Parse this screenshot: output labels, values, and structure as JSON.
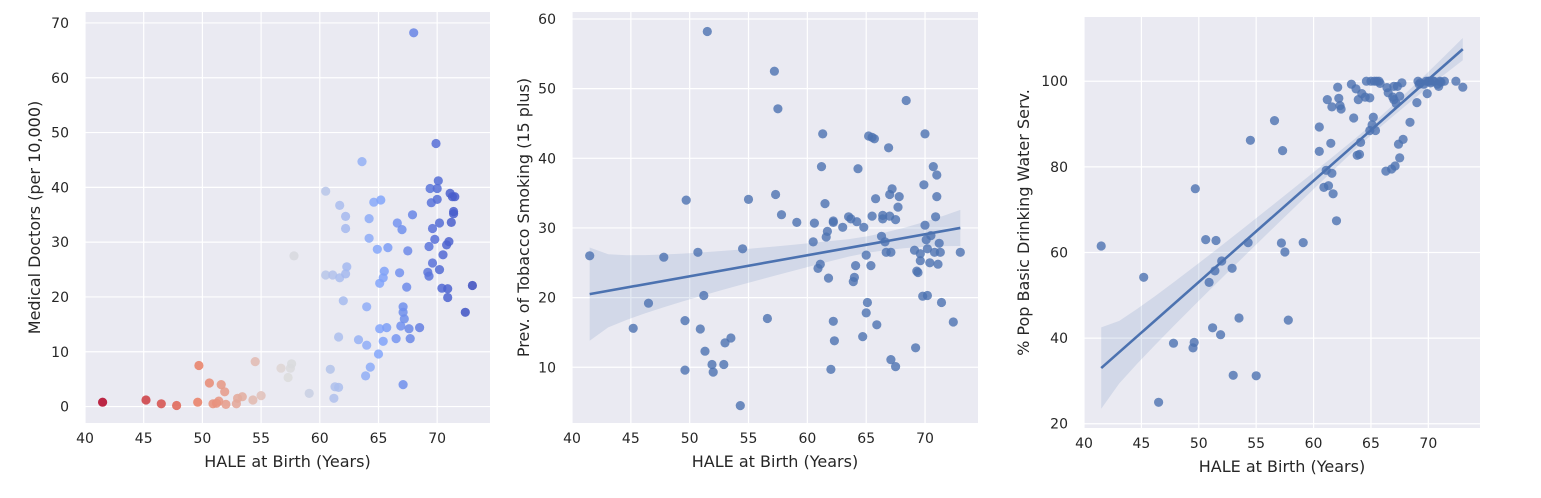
{
  "chart_data": [
    {
      "type": "scatter",
      "xlabel": "HALE at Birth (Years)",
      "ylabel": "Medical Doctors (per 10,000)",
      "xlim": [
        40,
        74.5
      ],
      "ylim": [
        -3,
        72
      ],
      "xticks": [
        40,
        45,
        50,
        55,
        60,
        65,
        70
      ],
      "yticks": [
        0,
        10,
        20,
        30,
        40,
        50,
        60,
        70
      ],
      "grid": true,
      "color_map": "coolwarm (reversed) by HALE at Birth",
      "points": [
        [
          41.5,
          0.8
        ],
        [
          45.2,
          1.2
        ],
        [
          46.5,
          0.5
        ],
        [
          47.8,
          0.2
        ],
        [
          49.6,
          0.8
        ],
        [
          49.7,
          7.5
        ],
        [
          50.6,
          4.3
        ],
        [
          50.9,
          0.5
        ],
        [
          51.2,
          0.6
        ],
        [
          51.4,
          1.0
        ],
        [
          51.6,
          4.0
        ],
        [
          51.9,
          2.7
        ],
        [
          52.0,
          0.4
        ],
        [
          52.9,
          0.5
        ],
        [
          53.0,
          1.5
        ],
        [
          53.4,
          1.8
        ],
        [
          54.3,
          1.2
        ],
        [
          54.5,
          8.2
        ],
        [
          55.0,
          2.0
        ],
        [
          56.7,
          7.0
        ],
        [
          57.3,
          5.3
        ],
        [
          57.5,
          7.0
        ],
        [
          57.6,
          7.8
        ],
        [
          57.8,
          27.5
        ],
        [
          59.1,
          2.4
        ],
        [
          60.5,
          39.3
        ],
        [
          60.5,
          24.0
        ],
        [
          60.9,
          6.8
        ],
        [
          61.1,
          24.0
        ],
        [
          61.2,
          1.5
        ],
        [
          61.3,
          3.6
        ],
        [
          61.6,
          3.5
        ],
        [
          61.6,
          12.7
        ],
        [
          61.7,
          23.5
        ],
        [
          61.7,
          36.7
        ],
        [
          62.0,
          19.3
        ],
        [
          62.2,
          34.7
        ],
        [
          62.2,
          32.5
        ],
        [
          62.2,
          24.2
        ],
        [
          62.3,
          25.5
        ],
        [
          63.3,
          12.2
        ],
        [
          63.6,
          44.7
        ],
        [
          63.9,
          5.6
        ],
        [
          64.0,
          18.2
        ],
        [
          64.0,
          11.2
        ],
        [
          64.2,
          34.3
        ],
        [
          64.2,
          30.7
        ],
        [
          64.3,
          7.2
        ],
        [
          64.6,
          37.3
        ],
        [
          64.9,
          28.7
        ],
        [
          65.0,
          9.6
        ],
        [
          65.1,
          14.2
        ],
        [
          65.1,
          22.5
        ],
        [
          65.2,
          37.7
        ],
        [
          65.4,
          11.9
        ],
        [
          65.4,
          23.5
        ],
        [
          65.5,
          24.7
        ],
        [
          65.7,
          14.4
        ],
        [
          65.8,
          29.0
        ],
        [
          66.5,
          12.4
        ],
        [
          66.6,
          33.5
        ],
        [
          66.8,
          24.4
        ],
        [
          66.9,
          14.7
        ],
        [
          67.0,
          32.3
        ],
        [
          67.1,
          17.2
        ],
        [
          67.1,
          18.2
        ],
        [
          67.1,
          4.0
        ],
        [
          67.2,
          16.0
        ],
        [
          67.4,
          21.8
        ],
        [
          67.5,
          28.4
        ],
        [
          67.6,
          14.2
        ],
        [
          67.7,
          12.4
        ],
        [
          67.9,
          35.0
        ],
        [
          68.0,
          68.2
        ],
        [
          68.5,
          14.4
        ],
        [
          69.2,
          24.5
        ],
        [
          69.3,
          29.2
        ],
        [
          69.3,
          23.8
        ],
        [
          69.4,
          39.8
        ],
        [
          69.5,
          37.2
        ],
        [
          69.6,
          26.2
        ],
        [
          69.6,
          32.5
        ],
        [
          69.8,
          30.5
        ],
        [
          69.9,
          48.0
        ],
        [
          70.0,
          37.8
        ],
        [
          70.0,
          39.8
        ],
        [
          70.1,
          41.2
        ],
        [
          70.2,
          25.0
        ],
        [
          70.2,
          33.5
        ],
        [
          70.4,
          21.6
        ],
        [
          70.5,
          27.7
        ],
        [
          70.8,
          29.5
        ],
        [
          70.9,
          19.9
        ],
        [
          70.9,
          21.5
        ],
        [
          71.0,
          30.1
        ],
        [
          71.1,
          38.9
        ],
        [
          71.2,
          33.6
        ],
        [
          71.3,
          38.3
        ],
        [
          71.4,
          35.6
        ],
        [
          71.4,
          35.2
        ],
        [
          71.5,
          38.3
        ],
        [
          72.4,
          17.2
        ],
        [
          73.0,
          22.1
        ]
      ]
    },
    {
      "type": "scatter",
      "xlabel": "HALE at Birth (Years)",
      "ylabel": "Prev. of Tobacco Smoking (15 plus)",
      "xlim": [
        40,
        74.5
      ],
      "ylim": [
        2,
        61
      ],
      "xticks": [
        40,
        45,
        50,
        55,
        60,
        65,
        70
      ],
      "yticks": [
        10,
        20,
        30,
        40,
        50,
        60
      ],
      "grid": true,
      "regression": {
        "x": [
          41.5,
          73.0
        ],
        "y": [
          20.5,
          30.0
        ],
        "ci_low": [
          14.2,
          27.5
        ],
        "ci_high": [
          27.6,
          32.7
        ]
      },
      "points": [
        [
          41.5,
          26.0
        ],
        [
          45.2,
          15.6
        ],
        [
          46.5,
          19.2
        ],
        [
          47.8,
          25.8
        ],
        [
          49.6,
          16.7
        ],
        [
          49.6,
          9.6
        ],
        [
          49.7,
          34.0
        ],
        [
          50.7,
          26.5
        ],
        [
          50.9,
          15.5
        ],
        [
          51.2,
          20.3
        ],
        [
          51.3,
          12.3
        ],
        [
          51.5,
          58.2
        ],
        [
          51.9,
          10.4
        ],
        [
          52.0,
          9.3
        ],
        [
          52.9,
          10.4
        ],
        [
          53.0,
          13.5
        ],
        [
          53.5,
          14.2
        ],
        [
          54.3,
          4.5
        ],
        [
          54.5,
          27.0
        ],
        [
          55.0,
          34.1
        ],
        [
          56.6,
          17.0
        ],
        [
          57.2,
          52.5
        ],
        [
          57.3,
          34.8
        ],
        [
          57.5,
          47.1
        ],
        [
          57.8,
          31.9
        ],
        [
          59.1,
          30.8
        ],
        [
          60.5,
          28.0
        ],
        [
          60.6,
          30.7
        ],
        [
          60.9,
          24.2
        ],
        [
          61.1,
          24.8
        ],
        [
          61.2,
          38.8
        ],
        [
          61.3,
          43.5
        ],
        [
          61.5,
          33.5
        ],
        [
          61.6,
          28.7
        ],
        [
          61.7,
          29.5
        ],
        [
          61.8,
          22.8
        ],
        [
          62.0,
          9.7
        ],
        [
          62.2,
          31.0
        ],
        [
          62.2,
          30.8
        ],
        [
          62.2,
          16.6
        ],
        [
          62.3,
          13.8
        ],
        [
          63.0,
          30.1
        ],
        [
          63.5,
          31.6
        ],
        [
          63.7,
          31.3
        ],
        [
          63.9,
          22.3
        ],
        [
          64.0,
          22.9
        ],
        [
          64.1,
          24.6
        ],
        [
          64.2,
          30.9
        ],
        [
          64.3,
          38.5
        ],
        [
          64.7,
          14.4
        ],
        [
          64.8,
          30.1
        ],
        [
          65.0,
          26.1
        ],
        [
          65.0,
          17.8
        ],
        [
          65.1,
          19.3
        ],
        [
          65.2,
          43.2
        ],
        [
          65.4,
          24.6
        ],
        [
          65.5,
          43.0
        ],
        [
          65.5,
          31.7
        ],
        [
          65.7,
          42.8
        ],
        [
          65.8,
          34.2
        ],
        [
          65.9,
          16.1
        ],
        [
          66.3,
          28.8
        ],
        [
          66.4,
          31.3
        ],
        [
          66.4,
          31.8
        ],
        [
          66.6,
          28.0
        ],
        [
          66.7,
          26.5
        ],
        [
          66.9,
          41.5
        ],
        [
          67.0,
          34.8
        ],
        [
          67.0,
          31.7
        ],
        [
          67.1,
          11.1
        ],
        [
          67.1,
          26.5
        ],
        [
          67.2,
          35.6
        ],
        [
          67.5,
          10.1
        ],
        [
          67.5,
          31.2
        ],
        [
          67.7,
          33.0
        ],
        [
          67.8,
          34.5
        ],
        [
          68.4,
          48.3
        ],
        [
          69.1,
          26.8
        ],
        [
          69.2,
          12.8
        ],
        [
          69.3,
          23.8
        ],
        [
          69.4,
          23.6
        ],
        [
          69.6,
          26.3
        ],
        [
          69.6,
          25.3
        ],
        [
          69.8,
          20.2
        ],
        [
          69.9,
          36.2
        ],
        [
          70.0,
          43.5
        ],
        [
          70.0,
          30.4
        ],
        [
          70.1,
          28.3
        ],
        [
          70.2,
          20.3
        ],
        [
          70.2,
          27.0
        ],
        [
          70.4,
          25.0
        ],
        [
          70.5,
          28.9
        ],
        [
          70.7,
          38.8
        ],
        [
          70.8,
          26.5
        ],
        [
          70.9,
          31.6
        ],
        [
          71.0,
          37.6
        ],
        [
          71.0,
          34.5
        ],
        [
          71.1,
          24.8
        ],
        [
          71.2,
          27.8
        ],
        [
          71.3,
          26.5
        ],
        [
          71.4,
          19.3
        ],
        [
          72.4,
          16.5
        ],
        [
          73.0,
          26.5
        ]
      ]
    },
    {
      "type": "scatter",
      "xlabel": "HALE at Birth (Years)",
      "ylabel": "% Pop Basic Drinking Water Serv.",
      "xlim": [
        40,
        74.5
      ],
      "ylim": [
        19,
        115
      ],
      "xticks": [
        40,
        45,
        50,
        55,
        60,
        65,
        70
      ],
      "yticks": [
        20,
        40,
        60,
        80,
        100
      ],
      "grid": true,
      "regression": {
        "x": [
          41.5,
          73.0
        ],
        "y": [
          33.0,
          107.5
        ],
        "ci_low": [
          23.5,
          105.0
        ],
        "ci_high": [
          42.5,
          110.2
        ]
      },
      "points": [
        [
          41.5,
          61.5
        ],
        [
          45.2,
          54.2
        ],
        [
          46.5,
          25.0
        ],
        [
          47.8,
          38.8
        ],
        [
          49.5,
          37.7
        ],
        [
          49.6,
          39.0
        ],
        [
          49.7,
          74.9
        ],
        [
          50.6,
          63.0
        ],
        [
          50.9,
          53.0
        ],
        [
          51.2,
          42.4
        ],
        [
          51.4,
          55.7
        ],
        [
          51.5,
          62.8
        ],
        [
          51.9,
          40.8
        ],
        [
          52.0,
          58.0
        ],
        [
          52.9,
          56.3
        ],
        [
          53.0,
          31.3
        ],
        [
          53.5,
          44.7
        ],
        [
          54.3,
          62.3
        ],
        [
          54.5,
          86.2
        ],
        [
          55.0,
          31.2
        ],
        [
          56.6,
          90.8
        ],
        [
          57.2,
          62.2
        ],
        [
          57.3,
          83.8
        ],
        [
          57.5,
          60.1
        ],
        [
          57.8,
          44.2
        ],
        [
          59.1,
          62.3
        ],
        [
          60.5,
          89.3
        ],
        [
          60.5,
          83.6
        ],
        [
          60.9,
          75.2
        ],
        [
          61.1,
          79.2
        ],
        [
          61.2,
          95.7
        ],
        [
          61.3,
          75.6
        ],
        [
          61.5,
          85.5
        ],
        [
          61.6,
          78.5
        ],
        [
          61.6,
          94.0
        ],
        [
          61.7,
          73.7
        ],
        [
          62.0,
          67.4
        ],
        [
          62.1,
          98.6
        ],
        [
          62.2,
          96.0
        ],
        [
          62.3,
          94.3
        ],
        [
          62.4,
          93.5
        ],
        [
          63.3,
          99.3
        ],
        [
          63.5,
          91.4
        ],
        [
          63.7,
          98.2
        ],
        [
          63.8,
          82.7
        ],
        [
          63.9,
          95.7
        ],
        [
          64.0,
          82.9
        ],
        [
          64.1,
          85.7
        ],
        [
          64.2,
          97.1
        ],
        [
          64.5,
          96.3
        ],
        [
          64.6,
          100.0
        ],
        [
          64.9,
          96.1
        ],
        [
          64.9,
          88.5
        ],
        [
          65.0,
          100.0
        ],
        [
          65.1,
          89.8
        ],
        [
          65.2,
          91.6
        ],
        [
          65.3,
          100.0
        ],
        [
          65.4,
          88.5
        ],
        [
          65.5,
          100.0
        ],
        [
          65.7,
          100.0
        ],
        [
          65.8,
          99.5
        ],
        [
          66.3,
          79.0
        ],
        [
          66.4,
          98.5
        ],
        [
          66.5,
          97.3
        ],
        [
          66.8,
          79.5
        ],
        [
          66.9,
          96.3
        ],
        [
          67.0,
          98.8
        ],
        [
          67.0,
          95.7
        ],
        [
          67.1,
          80.2
        ],
        [
          67.2,
          94.8
        ],
        [
          67.3,
          98.8
        ],
        [
          67.4,
          85.3
        ],
        [
          67.5,
          82.1
        ],
        [
          67.5,
          96.5
        ],
        [
          67.7,
          99.6
        ],
        [
          67.8,
          86.4
        ],
        [
          68.4,
          90.4
        ],
        [
          69.0,
          95.0
        ],
        [
          69.1,
          100.0
        ],
        [
          69.2,
          99.3
        ],
        [
          69.3,
          99.6
        ],
        [
          69.6,
          99.3
        ],
        [
          69.8,
          100.0
        ],
        [
          69.9,
          97.1
        ],
        [
          70.0,
          100.0
        ],
        [
          70.1,
          100.0
        ],
        [
          70.2,
          99.6
        ],
        [
          70.4,
          100.0
        ],
        [
          70.5,
          100.0
        ],
        [
          70.8,
          99.3
        ],
        [
          70.9,
          98.8
        ],
        [
          71.0,
          100.0
        ],
        [
          71.1,
          99.8
        ],
        [
          71.4,
          100.0
        ],
        [
          72.4,
          100.0
        ],
        [
          73.0,
          98.6
        ]
      ]
    }
  ]
}
